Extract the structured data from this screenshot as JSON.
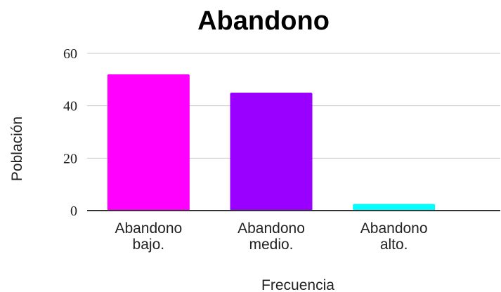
{
  "chart_data": {
    "type": "bar",
    "title": "Abandono",
    "xlabel": "Frecuencia",
    "ylabel": "Población",
    "categories": [
      [
        "Abandono",
        "bajo."
      ],
      [
        "Abandono",
        "medio."
      ],
      [
        "Abandono",
        "alto."
      ]
    ],
    "values": [
      52,
      45,
      2.5
    ],
    "colors": [
      "#ff00ff",
      "#9900ff",
      "#00ffff"
    ],
    "ylim": [
      0,
      60
    ],
    "yticks": [
      0,
      20,
      40,
      60
    ],
    "grid": true,
    "legend": "none"
  }
}
